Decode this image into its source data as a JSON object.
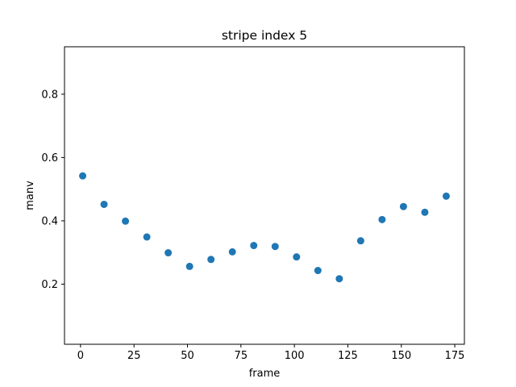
{
  "chart_data": {
    "type": "scatter",
    "title": "stripe index 5",
    "xlabel": "frame",
    "ylabel": "manv",
    "xlim": [
      -7.5,
      179.5
    ],
    "ylim": [
      0.01,
      0.95
    ],
    "xticks": [
      0,
      25,
      50,
      75,
      100,
      125,
      150,
      175
    ],
    "yticks": [
      0.2,
      0.4,
      0.6,
      0.8
    ],
    "xtick_labels": [
      "0",
      "25",
      "50",
      "75",
      "100",
      "125",
      "150",
      "175"
    ],
    "ytick_labels": [
      "0.2",
      "0.4",
      "0.6",
      "0.8"
    ],
    "grid": false,
    "marker_color": "#1f77b4",
    "x": [
      1,
      11,
      21,
      31,
      41,
      51,
      61,
      71,
      81,
      91,
      101,
      111,
      121,
      131,
      141,
      151,
      161,
      171
    ],
    "y": [
      0.542,
      0.452,
      0.399,
      0.349,
      0.299,
      0.256,
      0.278,
      0.302,
      0.322,
      0.319,
      0.286,
      0.243,
      0.217,
      0.337,
      0.404,
      0.445,
      0.427,
      0.478
    ]
  }
}
